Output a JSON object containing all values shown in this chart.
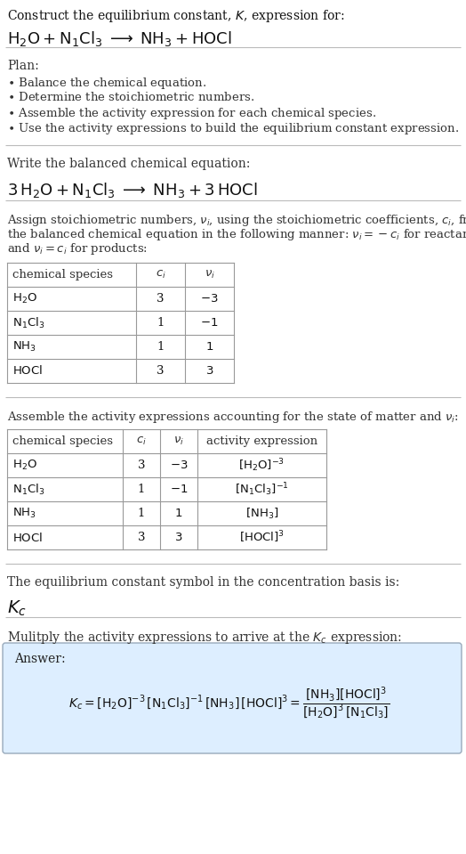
{
  "bg_color": "#ffffff",
  "text_color": "#111111",
  "gray_text": "#444444",
  "table_border": "#888888",
  "answer_box_bg": "#ddeeff",
  "answer_box_border": "#99aabb",
  "title_line1": "Construct the equilibrium constant, $K$, expression for:",
  "title_line2": "$\\mathrm{H_2O + N_1Cl_3 \\;\\longrightarrow\\; NH_3 + HOCl}$",
  "plan_header": "Plan:",
  "plan_items": [
    "$\\bullet$ Balance the chemical equation.",
    "$\\bullet$ Determine the stoichiometric numbers.",
    "$\\bullet$ Assemble the activity expression for each chemical species.",
    "$\\bullet$ Use the activity expressions to build the equilibrium constant expression."
  ],
  "balanced_header": "Write the balanced chemical equation:",
  "balanced_eq": "$\\mathrm{3\\,H_2O + N_1Cl_3 \\;\\longrightarrow\\; NH_3 + 3\\,HOCl}$",
  "stoich_intro_lines": [
    "Assign stoichiometric numbers, $\\nu_i$, using the stoichiometric coefficients, $c_i$, from",
    "the balanced chemical equation in the following manner: $\\nu_i = -c_i$ for reactants",
    "and $\\nu_i = c_i$ for products:"
  ],
  "table1_headers": [
    "chemical species",
    "$c_i$",
    "$\\nu_i$"
  ],
  "table1_rows": [
    [
      "$\\mathrm{H_2O}$",
      "3",
      "$-3$"
    ],
    [
      "$\\mathrm{N_1Cl_3}$",
      "1",
      "$-1$"
    ],
    [
      "$\\mathrm{NH_3}$",
      "1",
      "$1$"
    ],
    [
      "$\\mathrm{HOCl}$",
      "3",
      "$3$"
    ]
  ],
  "assemble_intro": "Assemble the activity expressions accounting for the state of matter and $\\nu_i$:",
  "table2_headers": [
    "chemical species",
    "$c_i$",
    "$\\nu_i$",
    "activity expression"
  ],
  "table2_rows": [
    [
      "$\\mathrm{H_2O}$",
      "3",
      "$-3$",
      "$[\\mathrm{H_2O}]^{-3}$"
    ],
    [
      "$\\mathrm{N_1Cl_3}$",
      "1",
      "$-1$",
      "$[\\mathrm{N_1Cl_3}]^{-1}$"
    ],
    [
      "$\\mathrm{NH_3}$",
      "1",
      "$1$",
      "$[\\mathrm{NH_3}]$"
    ],
    [
      "$\\mathrm{HOCl}$",
      "3",
      "$3$",
      "$[\\mathrm{HOCl}]^3$"
    ]
  ],
  "kc_symbol_intro": "The equilibrium constant symbol in the concentration basis is:",
  "kc_symbol": "$K_c$",
  "multiply_intro": "Mulitply the activity expressions to arrive at the $K_c$ expression:",
  "answer_label": "Answer:",
  "answer_eq_line": "$K_c = [\\mathrm{H_2O}]^{-3}\\,[\\mathrm{N_1Cl_3}]^{-1}\\,[\\mathrm{NH_3}]\\,[\\mathrm{HOCl}]^3 = \\dfrac{[\\mathrm{NH_3}][\\mathrm{HOCl}]^3}{[\\mathrm{H_2O}]^3\\,[\\mathrm{N_1Cl_3}]}$"
}
